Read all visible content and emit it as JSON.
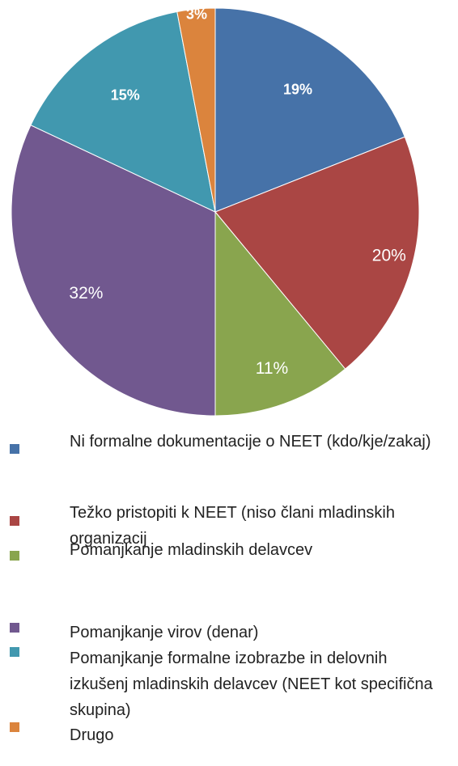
{
  "chart_data": {
    "type": "pie",
    "categories": [
      "Ni formalne dokumentacije o NEET (kdo/kje/zakaj)",
      "Težko pristopiti k NEET (niso člani mladinskih organizacij",
      "Pomanjkanje mladinskih delavcev",
      "Pomanjkanje virov (denar)",
      "Pomanjkanje formalne izobrazbe in delovnih izkušenj mladinskih delavcev (NEET kot specifična skupina)",
      "Drugo"
    ],
    "values": [
      19,
      20,
      11,
      32,
      15,
      3
    ],
    "value_labels": [
      "19%",
      "20%",
      "11%",
      "32%",
      "15%",
      "3%"
    ],
    "colors": [
      "#4672a8",
      "#aa4644",
      "#89a54e",
      "#71588f",
      "#4198af",
      "#db843d"
    ]
  }
}
